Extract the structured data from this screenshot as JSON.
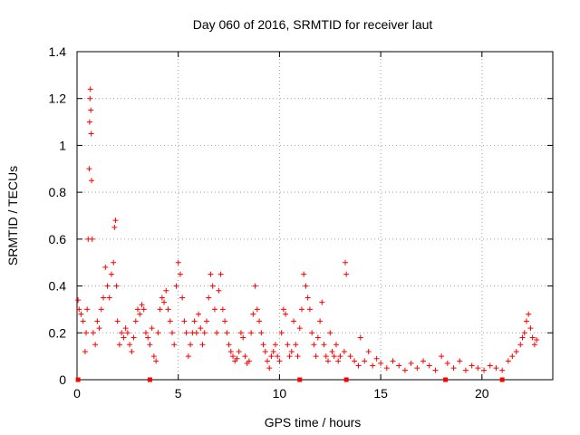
{
  "chart_data": {
    "type": "scatter",
    "title": "Day 060 of 2016, SRMTID for receiver laut",
    "xlabel": "GPS time / hours",
    "ylabel": "SRMTID / TECUs",
    "xlim": [
      0,
      23.5
    ],
    "ylim": [
      0,
      1.4
    ],
    "xticks": [
      0,
      5,
      10,
      15,
      20
    ],
    "yticks": [
      0,
      0.2,
      0.4,
      0.6,
      0.8,
      1,
      1.2,
      1.4
    ],
    "ytick_labels": [
      "0",
      "0.2",
      "0.4",
      "0.6",
      "0.8",
      "1",
      "1.2",
      "1.4"
    ],
    "grid": true,
    "marker": "plus",
    "color": "#ff0000",
    "series": [
      {
        "name": "SRMTID",
        "x": [
          0.05,
          0.1,
          0.2,
          0.3,
          0.4,
          0.45,
          0.5,
          0.55,
          0.6,
          0.62,
          0.64,
          0.66,
          0.68,
          0.7,
          0.72,
          0.75,
          0.8,
          0.9,
          1.0,
          1.1,
          1.2,
          1.3,
          1.4,
          1.5,
          1.6,
          1.7,
          1.8,
          1.85,
          1.9,
          1.95,
          2.0,
          2.1,
          2.2,
          2.3,
          2.4,
          2.5,
          2.6,
          2.7,
          2.8,
          2.9,
          3.0,
          3.1,
          3.2,
          3.3,
          3.4,
          3.5,
          3.6,
          3.7,
          3.8,
          3.9,
          4.0,
          4.1,
          4.2,
          4.3,
          4.4,
          4.5,
          4.6,
          4.7,
          4.8,
          4.9,
          5.0,
          5.1,
          5.2,
          5.3,
          5.4,
          5.5,
          5.6,
          5.7,
          5.8,
          5.9,
          6.0,
          6.1,
          6.2,
          6.3,
          6.4,
          6.5,
          6.6,
          6.7,
          6.8,
          6.9,
          7.0,
          7.1,
          7.2,
          7.3,
          7.4,
          7.5,
          7.6,
          7.7,
          7.8,
          7.9,
          8.0,
          8.1,
          8.2,
          8.3,
          8.4,
          8.5,
          8.6,
          8.7,
          8.8,
          8.9,
          9.0,
          9.1,
          9.2,
          9.3,
          9.4,
          9.5,
          9.6,
          9.7,
          9.8,
          9.9,
          10.0,
          10.1,
          10.2,
          10.3,
          10.4,
          10.5,
          10.6,
          10.7,
          10.8,
          10.9,
          11.0,
          11.1,
          11.2,
          11.3,
          11.4,
          11.5,
          11.6,
          11.7,
          11.8,
          11.9,
          12.0,
          12.1,
          12.2,
          12.3,
          12.4,
          12.5,
          12.6,
          12.7,
          12.8,
          12.9,
          13.0,
          13.2,
          13.25,
          13.3,
          13.5,
          13.7,
          13.9,
          14.0,
          14.2,
          14.4,
          14.6,
          14.8,
          15.0,
          15.3,
          15.6,
          15.9,
          16.2,
          16.5,
          16.8,
          17.1,
          17.4,
          17.7,
          18.0,
          18.3,
          18.6,
          18.9,
          19.2,
          19.5,
          19.8,
          20.1,
          20.4,
          20.7,
          21.0,
          21.3,
          21.5,
          21.7,
          21.9,
          22.0,
          22.1,
          22.2,
          22.3,
          22.4,
          22.5,
          22.6,
          22.7
        ],
        "y": [
          0.34,
          0.3,
          0.28,
          0.25,
          0.12,
          0.2,
          0.3,
          0.6,
          0.9,
          1.1,
          1.2,
          1.24,
          1.15,
          1.05,
          0.85,
          0.6,
          0.2,
          0.15,
          0.25,
          0.22,
          0.3,
          0.35,
          0.48,
          0.4,
          0.35,
          0.45,
          0.5,
          0.65,
          0.68,
          0.4,
          0.25,
          0.15,
          0.2,
          0.18,
          0.22,
          0.2,
          0.15,
          0.12,
          0.18,
          0.25,
          0.3,
          0.28,
          0.32,
          0.3,
          0.2,
          0.18,
          0.15,
          0.22,
          0.1,
          0.08,
          0.2,
          0.3,
          0.35,
          0.33,
          0.38,
          0.3,
          0.25,
          0.2,
          0.15,
          0.4,
          0.5,
          0.45,
          0.35,
          0.25,
          0.2,
          0.1,
          0.15,
          0.2,
          0.25,
          0.2,
          0.28,
          0.22,
          0.15,
          0.2,
          0.25,
          0.35,
          0.45,
          0.4,
          0.3,
          0.2,
          0.38,
          0.45,
          0.3,
          0.25,
          0.2,
          0.15,
          0.12,
          0.1,
          0.08,
          0.09,
          0.12,
          0.2,
          0.18,
          0.1,
          0.07,
          0.08,
          0.2,
          0.28,
          0.4,
          0.3,
          0.25,
          0.2,
          0.15,
          0.12,
          0.08,
          0.05,
          0.1,
          0.12,
          0.15,
          0.1,
          0.08,
          0.2,
          0.3,
          0.28,
          0.15,
          0.1,
          0.12,
          0.25,
          0.15,
          0.1,
          0.22,
          0.3,
          0.45,
          0.4,
          0.35,
          0.3,
          0.2,
          0.15,
          0.1,
          0.18,
          0.25,
          0.33,
          0.15,
          0.1,
          0.08,
          0.2,
          0.12,
          0.1,
          0.15,
          0.08,
          0.1,
          0.12,
          0.5,
          0.45,
          0.1,
          0.08,
          0.06,
          0.18,
          0.08,
          0.12,
          0.06,
          0.09,
          0.07,
          0.05,
          0.08,
          0.06,
          0.04,
          0.07,
          0.05,
          0.08,
          0.06,
          0.04,
          0.1,
          0.07,
          0.05,
          0.08,
          0.04,
          0.06,
          0.05,
          0.04,
          0.06,
          0.05,
          0.04,
          0.08,
          0.1,
          0.12,
          0.15,
          0.18,
          0.2,
          0.25,
          0.28,
          0.22,
          0.18,
          0.15,
          0.17
        ]
      }
    ],
    "axis_markers_x": [
      0.05,
      3.6,
      11.0,
      13.3,
      18.2,
      21.0
    ]
  }
}
